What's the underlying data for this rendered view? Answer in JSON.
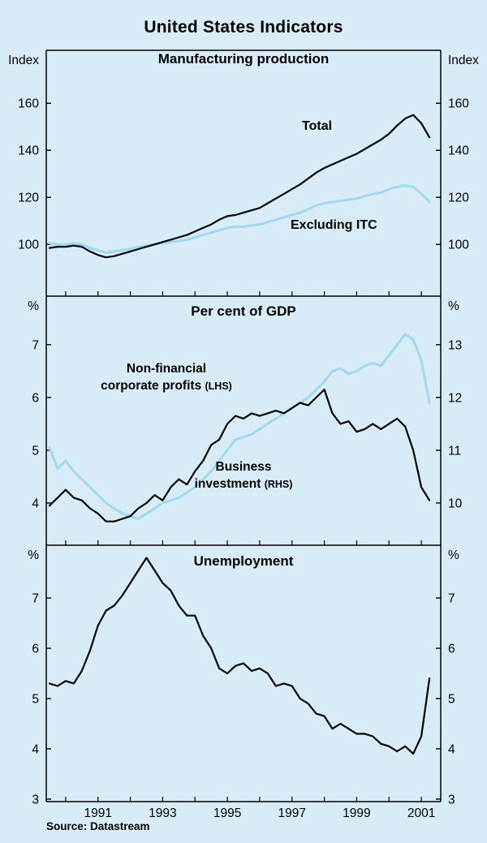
{
  "title": "United States Indicators",
  "source": "Source: Datastream",
  "colors": {
    "background": "#d7ecf6",
    "black": "#000000",
    "blue": "#9fd8f0"
  },
  "labels": {
    "total": "Total",
    "excluding_itc": "Excluding ITC",
    "profits_line1": "Non-financial",
    "profits_line2": "corporate profits",
    "profits_suffix": "(LHS)",
    "invest_line1": "Business",
    "invest_line2": "investment",
    "invest_suffix": "(RHS)"
  },
  "chart_data": {
    "type": "line",
    "title": "United States Indicators",
    "x_start": 1989.5,
    "x_step": 0.25,
    "xlim": [
      1989.4,
      2001.6
    ],
    "x_minor": [
      1990,
      1991,
      1992,
      1993,
      1994,
      1995,
      1996,
      1997,
      1998,
      1999,
      2000,
      2001
    ],
    "x_tick_labels": [
      {
        "v": 1991,
        "label": "1991"
      },
      {
        "v": 1993,
        "label": "1993"
      },
      {
        "v": 1995,
        "label": "1995"
      },
      {
        "v": 1997,
        "label": "1997"
      },
      {
        "v": 1999,
        "label": "1999"
      },
      {
        "v": 2001,
        "label": "2001"
      }
    ],
    "panels": [
      {
        "title": "Manufacturing production",
        "unit_left": "Index",
        "unit_right": "Index",
        "ylim_left": [
          78,
          182.5
        ],
        "ylim_right": [
          78,
          182.5
        ],
        "ticks_left": [
          100,
          120,
          140,
          160
        ],
        "ticks_right": [
          100,
          120,
          140,
          160
        ],
        "series": [
          {
            "name": "Excluding ITC",
            "axis": "left",
            "color": "blue",
            "values": [
              100.5,
              100,
              100,
              100.5,
              100,
              98.5,
              97.5,
              96.5,
              97,
              97.5,
              98,
              99,
              99.5,
              100,
              100.5,
              101,
              101.5,
              102,
              103,
              104,
              105,
              106,
              107,
              107.5,
              107.5,
              108,
              108.5,
              109.5,
              110.5,
              111.5,
              112.5,
              113.5,
              115,
              116.5,
              117.5,
              118,
              118.5,
              119,
              119.5,
              120.5,
              121.5,
              122,
              123.5,
              124.5,
              125,
              124.5,
              121.5,
              118
            ]
          },
          {
            "name": "Total",
            "axis": "left",
            "color": "black",
            "values": [
              98.5,
              99,
              99,
              99.5,
              99,
              97,
              95.5,
              94.5,
              95,
              96,
              97,
              98,
              99,
              100,
              101,
              102,
              103,
              104,
              105.5,
              107,
              108.5,
              110.5,
              112,
              112.5,
              113.5,
              114.5,
              115.5,
              117.5,
              119.5,
              121.5,
              123.5,
              125.5,
              128,
              130.5,
              132.5,
              134,
              135.5,
              137,
              138.5,
              140.5,
              142.5,
              144.5,
              147,
              150.5,
              153.5,
              155,
              151.5,
              145.5
            ]
          }
        ]
      },
      {
        "title": "Per cent of GDP",
        "unit_left": "%",
        "unit_right": "%",
        "ylim_left": [
          3.2,
          7.92
        ],
        "ylim_right": [
          9.2,
          13.92
        ],
        "ticks_left": [
          4,
          5,
          6,
          7
        ],
        "ticks_right": [
          10,
          11,
          12,
          13
        ],
        "series": [
          {
            "name": "Non-financial corporate profits (LHS)",
            "axis": "left",
            "color": "blue",
            "values": [
              5.05,
              4.65,
              4.8,
              4.6,
              4.45,
              4.3,
              4.15,
              4,
              3.9,
              3.8,
              3.75,
              3.7,
              3.8,
              3.9,
              4,
              4.05,
              4.1,
              4.2,
              4.3,
              4.45,
              4.6,
              4.8,
              5,
              5.2,
              5.25,
              5.3,
              5.4,
              5.5,
              5.6,
              5.7,
              5.8,
              5.9,
              6,
              6.15,
              6.3,
              6.5,
              6.55,
              6.45,
              6.5,
              6.6,
              6.65,
              6.6,
              6.8,
              7,
              7.2,
              7.1,
              6.7,
              5.9
            ]
          },
          {
            "name": "Business investment (RHS)",
            "axis": "right",
            "color": "black",
            "values": [
              9.95,
              10.1,
              10.25,
              10.1,
              10.05,
              9.9,
              9.8,
              9.65,
              9.65,
              9.7,
              9.75,
              9.9,
              10,
              10.15,
              10.05,
              10.3,
              10.45,
              10.35,
              10.6,
              10.8,
              11.1,
              11.2,
              11.5,
              11.65,
              11.6,
              11.7,
              11.65,
              11.7,
              11.75,
              11.7,
              11.8,
              11.9,
              11.85,
              12,
              12.15,
              11.7,
              11.5,
              11.55,
              11.35,
              11.4,
              11.5,
              11.4,
              11.5,
              11.6,
              11.45,
              11,
              10.3,
              10.05
            ]
          }
        ]
      },
      {
        "title": "Unemployment",
        "unit_left": "%",
        "unit_right": "%",
        "ylim_left": [
          2.95,
          8.05
        ],
        "ylim_right": [
          2.95,
          8.05
        ],
        "ticks_left": [
          3,
          4,
          5,
          6,
          7
        ],
        "ticks_right": [
          3,
          4,
          5,
          6,
          7
        ],
        "series": [
          {
            "name": "Unemployment",
            "axis": "left",
            "color": "black",
            "values": [
              5.3,
              5.25,
              5.35,
              5.3,
              5.55,
              5.95,
              6.45,
              6.75,
              6.85,
              7.05,
              7.3,
              7.55,
              7.8,
              7.55,
              7.3,
              7.15,
              6.85,
              6.65,
              6.65,
              6.25,
              6,
              5.6,
              5.5,
              5.65,
              5.7,
              5.55,
              5.6,
              5.5,
              5.25,
              5.3,
              5.25,
              5,
              4.9,
              4.7,
              4.65,
              4.4,
              4.5,
              4.4,
              4.3,
              4.3,
              4.25,
              4.1,
              4.05,
              3.95,
              4.05,
              3.9,
              4.25,
              5.4
            ]
          }
        ]
      }
    ]
  }
}
